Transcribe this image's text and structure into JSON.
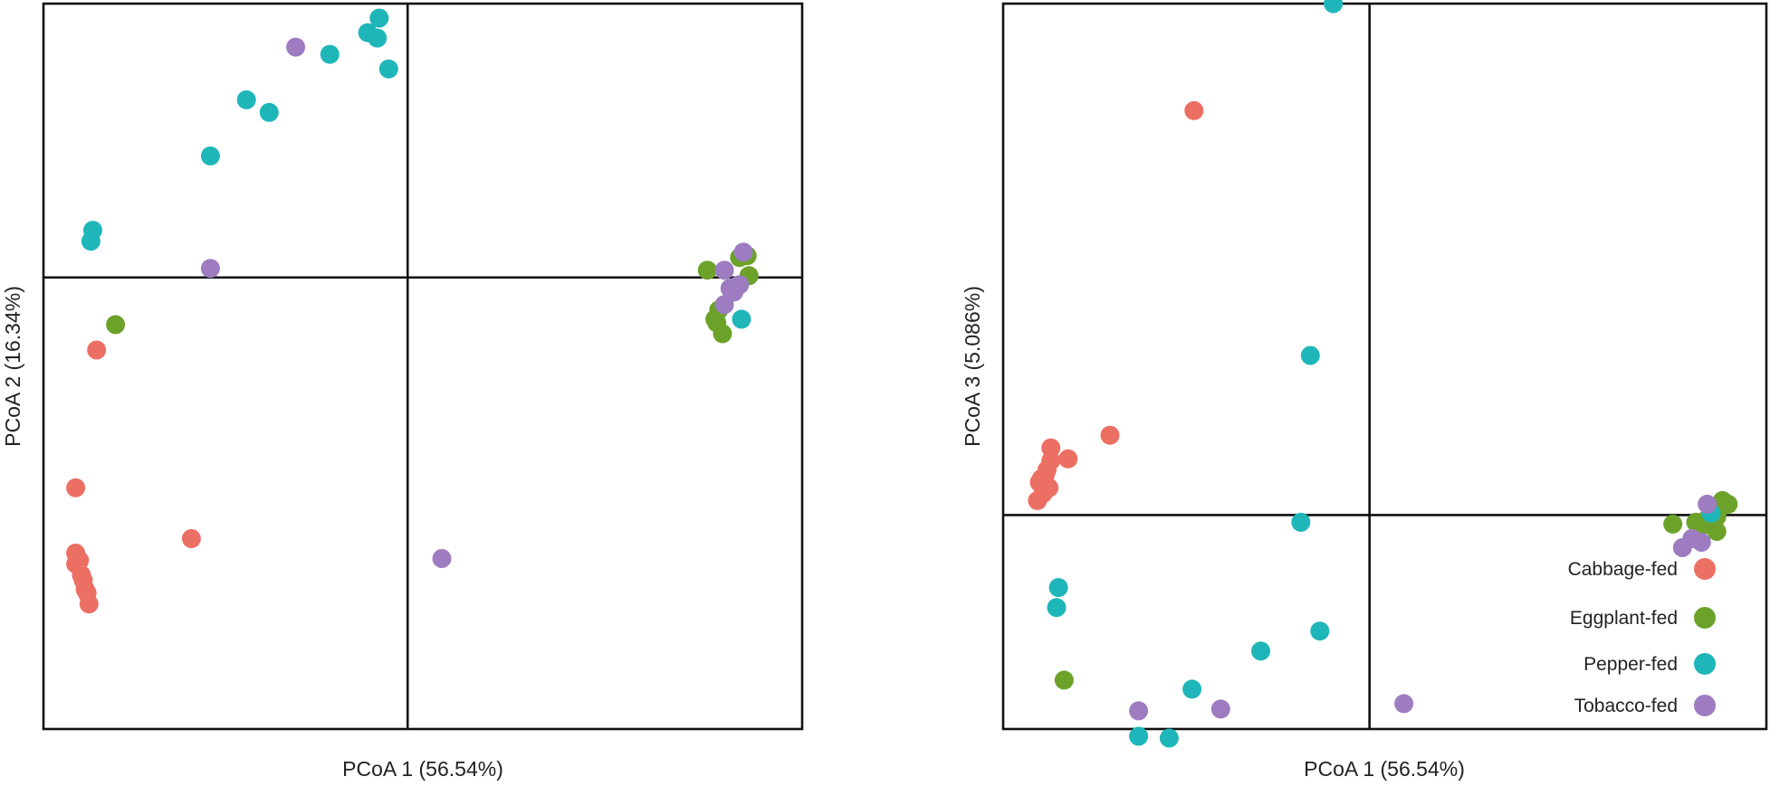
{
  "legend": [
    {
      "label": "Cabbage-fed",
      "color": "#ec6f64"
    },
    {
      "label": "Eggplant-fed",
      "color": "#6ca22a"
    },
    {
      "label": "Pepper-fed",
      "color": "#1fb6ba"
    },
    {
      "label": "Tobacco-fed",
      "color": "#9d7cc1"
    }
  ],
  "chart_data": [
    {
      "type": "scatter",
      "xlabel": "PCoA 1 (56.54%)",
      "ylabel": "PCoA 2 (16.34%)",
      "xlim": [
        -1,
        1
      ],
      "ylim": [
        -1,
        1
      ],
      "reference_lines": {
        "x": -0.04,
        "y": -0.245
      },
      "grid": false,
      "series": [
        {
          "name": "Cabbage-fed",
          "points": [
            [
              -0.915,
              0.545
            ],
            [
              -0.915,
              0.515
            ],
            [
              -0.91,
              0.545
            ],
            [
              -0.905,
              0.535
            ],
            [
              -0.9,
              0.575
            ],
            [
              -0.895,
              0.59
            ],
            [
              -0.89,
              0.615
            ],
            [
              -0.885,
              0.625
            ],
            [
              -0.88,
              0.655
            ],
            [
              -0.915,
              0.335
            ],
            [
              -0.61,
              0.475
            ],
            [
              -0.86,
              -0.045
            ]
          ]
        },
        {
          "name": "Eggplant-fed",
          "points": [
            [
              -0.81,
              -0.115
            ],
            [
              0.75,
              -0.265
            ],
            [
              0.77,
              -0.13
            ],
            [
              0.78,
              -0.155
            ],
            [
              0.79,
              -0.09
            ],
            [
              0.775,
              -0.12
            ],
            [
              0.81,
              -0.215
            ],
            [
              0.835,
              -0.3
            ],
            [
              0.86,
              -0.25
            ],
            [
              0.855,
              -0.305
            ]
          ]
        },
        {
          "name": "Pepper-fed",
          "points": [
            [
              -0.87,
              -0.375
            ],
            [
              -0.875,
              -0.345
            ],
            [
              -0.56,
              -0.58
            ],
            [
              -0.465,
              -0.735
            ],
            [
              -0.405,
              -0.7
            ],
            [
              -0.245,
              -0.86
            ],
            [
              -0.145,
              -0.92
            ],
            [
              -0.12,
              -0.905
            ],
            [
              -0.115,
              -0.96
            ],
            [
              -0.09,
              -0.82
            ],
            [
              0.84,
              -0.13
            ]
          ]
        },
        {
          "name": "Tobacco-fed",
          "points": [
            [
              -0.56,
              -0.27
            ],
            [
              -0.335,
              -0.88
            ],
            [
              0.795,
              -0.265
            ],
            [
              0.795,
              -0.17
            ],
            [
              0.82,
              -0.205
            ],
            [
              0.81,
              -0.215
            ],
            [
              0.835,
              -0.225
            ],
            [
              0.825,
              -0.22
            ],
            [
              0.845,
              -0.315
            ],
            [
              0.05,
              0.53
            ]
          ]
        }
      ]
    },
    {
      "type": "scatter",
      "xlabel": "PCoA 1 (56.54%)",
      "ylabel": "PCoA 3 (5.086%)",
      "xlim": [
        -1,
        1
      ],
      "ylim": [
        -1,
        1
      ],
      "reference_lines": {
        "x": -0.04,
        "y": 0.41
      },
      "grid": false,
      "legend_position": "bottom-right",
      "series": [
        {
          "name": "Cabbage-fed",
          "points": [
            [
              -0.91,
              0.37
            ],
            [
              -0.905,
              0.32
            ],
            [
              -0.895,
              0.35
            ],
            [
              -0.9,
              0.31
            ],
            [
              -0.89,
              0.3
            ],
            [
              -0.88,
              0.335
            ],
            [
              -0.885,
              0.285
            ],
            [
              -0.875,
              0.26
            ],
            [
              -0.875,
              0.225
            ],
            [
              -0.83,
              0.255
            ],
            [
              -0.72,
              0.19
            ],
            [
              -0.5,
              -0.705
            ]
          ]
        },
        {
          "name": "Eggplant-fed",
          "points": [
            [
              -0.84,
              0.865
            ],
            [
              0.755,
              0.435
            ],
            [
              0.815,
              0.43
            ],
            [
              0.83,
              0.44
            ],
            [
              0.855,
              0.43
            ],
            [
              0.87,
              0.415
            ],
            [
              0.875,
              0.395
            ],
            [
              0.885,
              0.37
            ],
            [
              0.9,
              0.38
            ],
            [
              0.87,
              0.455
            ],
            [
              0.84,
              0.425
            ]
          ]
        },
        {
          "name": "Pepper-fed",
          "points": [
            [
              -0.86,
              0.665
            ],
            [
              -0.855,
              0.61
            ],
            [
              -0.645,
              1.02
            ],
            [
              -0.565,
              1.025
            ],
            [
              -0.505,
              0.89
            ],
            [
              -0.325,
              0.785
            ],
            [
              -0.17,
              0.73
            ],
            [
              -0.22,
              0.43
            ],
            [
              -0.195,
              -0.03
            ],
            [
              -0.135,
              -1.0
            ],
            [
              0.855,
              0.405
            ]
          ]
        },
        {
          "name": "Tobacco-fed",
          "points": [
            [
              -0.645,
              0.95
            ],
            [
              -0.43,
              0.945
            ],
            [
              0.05,
              0.93
            ],
            [
              0.78,
              0.5
            ],
            [
              0.805,
              0.475
            ],
            [
              0.83,
              0.485
            ],
            [
              0.845,
              0.38
            ]
          ]
        }
      ]
    }
  ]
}
